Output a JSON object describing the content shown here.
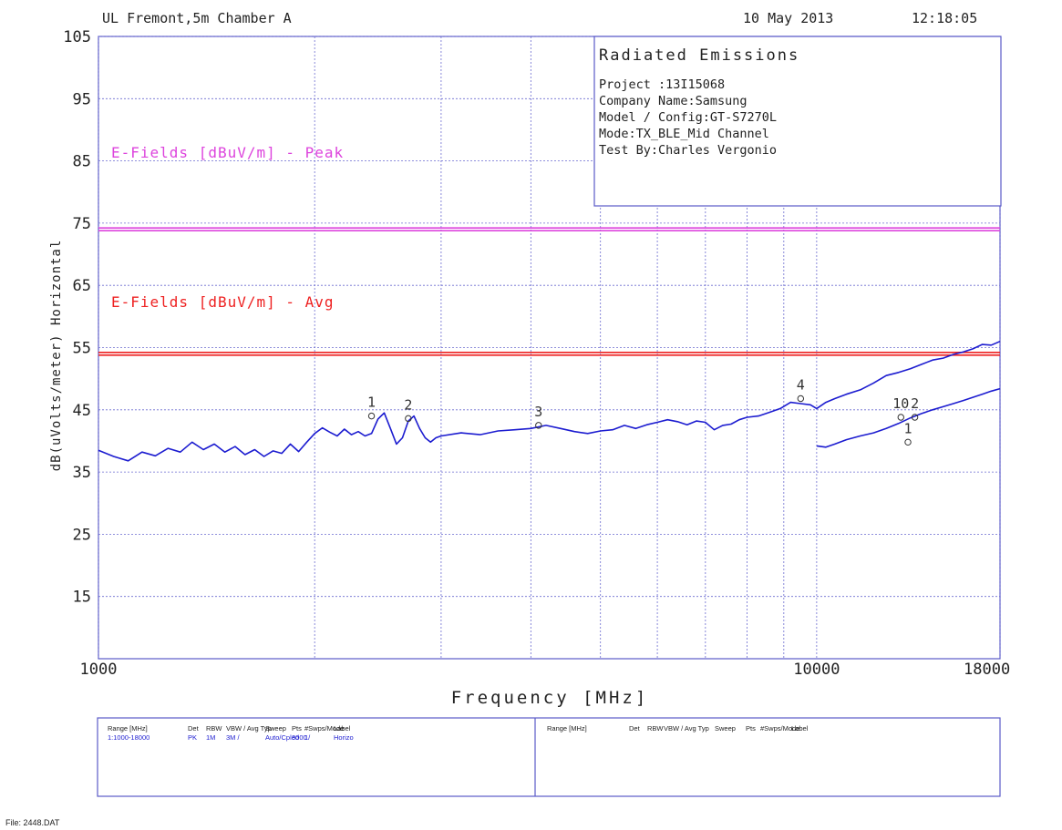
{
  "header": {
    "lab": "UL Fremont,5m Chamber A",
    "date": "10 May 2013",
    "time": "12:18:05"
  },
  "info_box": {
    "title": "Radiated Emissions",
    "lines": [
      "Project :13I15068",
      "Company Name:Samsung",
      "Model / Config:GT-S7270L",
      "Mode:TX_BLE_Mid Channel",
      "Test By:Charles Vergonio"
    ]
  },
  "footer": {
    "file": "File: 2448.DAT"
  },
  "colors": {
    "frame": "#5a5ac8",
    "grid": "#6c6cd0",
    "trace": "#1c1cd0",
    "peak_limit": "#dd44dd",
    "avg_limit": "#ee2222",
    "text": "#222222"
  },
  "settings_table": {
    "left_headers": [
      "Range [MHz]",
      "Det",
      "RBW",
      "VBW / Avg Typ",
      "Sweep",
      "Pts",
      "#Swps/Mode",
      "Label"
    ],
    "left_row": [
      "1:1000-18000",
      "PK",
      "1M",
      "3M /",
      "Auto/Cpled",
      "3000",
      "1/",
      "Horizo"
    ],
    "right_headers": [
      "Range [MHz]",
      "Det",
      "RBW",
      "VBW / Avg Typ",
      "Sweep",
      "Pts",
      "#Swps/Mode",
      "Label"
    ]
  },
  "chart_data": {
    "type": "line",
    "xlabel": "Frequency [MHz]",
    "ylabel": "dB(uVolts/meter) Horizontal",
    "x_scale": "log",
    "xlim": [
      1000,
      18000
    ],
    "ylim": [
      5,
      105
    ],
    "y_ticks": [
      105,
      95,
      85,
      75,
      65,
      55,
      45,
      35,
      25,
      15
    ],
    "x_tick_labels": [
      {
        "value": 1000,
        "label": "1000"
      },
      {
        "value": 10000,
        "label": "10000"
      },
      {
        "value": 18000,
        "label": "18000"
      }
    ],
    "x_grid": [
      1000,
      2000,
      3000,
      4000,
      5000,
      6000,
      7000,
      8000,
      9000,
      10000,
      18000
    ],
    "grid": true,
    "limits": [
      {
        "name": "E-Fields [dBuV/m] - Peak",
        "value": 74
      },
      {
        "name": "E-Fields [dBuV/m] - Avg",
        "value": 54
      }
    ],
    "series": [
      {
        "x": [
          1000,
          1050,
          1100,
          1150,
          1200,
          1250,
          1300,
          1350,
          1400,
          1450,
          1500,
          1550,
          1600,
          1650,
          1700,
          1750,
          1800,
          1850,
          1900,
          1950,
          2000,
          2050,
          2100,
          2150,
          2200,
          2250,
          2300,
          2350,
          2400,
          2450,
          2500,
          2550,
          2600,
          2650,
          2700,
          2750,
          2800,
          2850,
          2900,
          2950,
          3000,
          3200,
          3400,
          3600,
          3800,
          4000,
          4200,
          4400,
          4600,
          4800,
          5000,
          5200,
          5400,
          5600,
          5800,
          6000,
          6200,
          6400,
          6600,
          6800,
          7000,
          7200,
          7400,
          7600,
          7800,
          8000,
          8300,
          8600,
          8900,
          9200,
          9500,
          9800,
          10000,
          10300,
          10600,
          11000,
          11500,
          12000,
          12500,
          13000,
          13500,
          14000,
          14500,
          15000,
          15500,
          16000,
          16500,
          17000,
          17500,
          18000
        ],
        "values": [
          38.5,
          37.5,
          36.8,
          38.2,
          37.6,
          38.8,
          38.2,
          39.8,
          38.6,
          39.5,
          38.2,
          39.1,
          37.8,
          38.6,
          37.5,
          38.4,
          38.0,
          39.5,
          38.3,
          39.8,
          41.2,
          42.1,
          41.4,
          40.8,
          41.9,
          41.0,
          41.5,
          40.8,
          41.2,
          43.5,
          44.5,
          42.0,
          39.5,
          40.5,
          43.2,
          44.0,
          42.0,
          40.5,
          39.8,
          40.5,
          40.8,
          41.3,
          41.0,
          41.6,
          41.8,
          42.0,
          42.5,
          42.0,
          41.5,
          41.2,
          41.6,
          41.8,
          42.5,
          42.0,
          42.6,
          43.0,
          43.4,
          43.1,
          42.6,
          43.2,
          43.0,
          41.8,
          42.5,
          42.7,
          43.4,
          43.8,
          44.0,
          44.6,
          45.2,
          46.2,
          46.0,
          45.8,
          45.2,
          46.2,
          46.8,
          47.5,
          48.2,
          49.3,
          50.5,
          51.0,
          51.6,
          52.3,
          53.0,
          53.3,
          53.9,
          54.3,
          54.8,
          55.5,
          55.4,
          56.0
        ]
      },
      {
        "x": [
          10000,
          10300,
          10600,
          11000,
          11500,
          12000,
          12500,
          13000,
          13500,
          14000,
          14500,
          15000,
          15500,
          16000,
          16500,
          17000,
          17500,
          18000
        ],
        "values": [
          39.2,
          39.0,
          39.5,
          40.2,
          40.8,
          41.3,
          42.0,
          42.8,
          43.7,
          44.4,
          45.0,
          45.5,
          46.0,
          46.5,
          47.0,
          47.5,
          48.0,
          48.4
        ]
      }
    ],
    "markers": [
      {
        "label": "1",
        "x": 2400,
        "y": 44.0
      },
      {
        "label": "2",
        "x": 2700,
        "y": 43.6
      },
      {
        "label": "3",
        "x": 4100,
        "y": 42.5
      },
      {
        "label": "4",
        "x": 9500,
        "y": 46.8
      },
      {
        "label": "10",
        "x": 13100,
        "y": 43.8
      },
      {
        "label": "2",
        "x": 13700,
        "y": 43.8
      },
      {
        "label": "1",
        "x": 13400,
        "y": 39.8
      }
    ]
  }
}
